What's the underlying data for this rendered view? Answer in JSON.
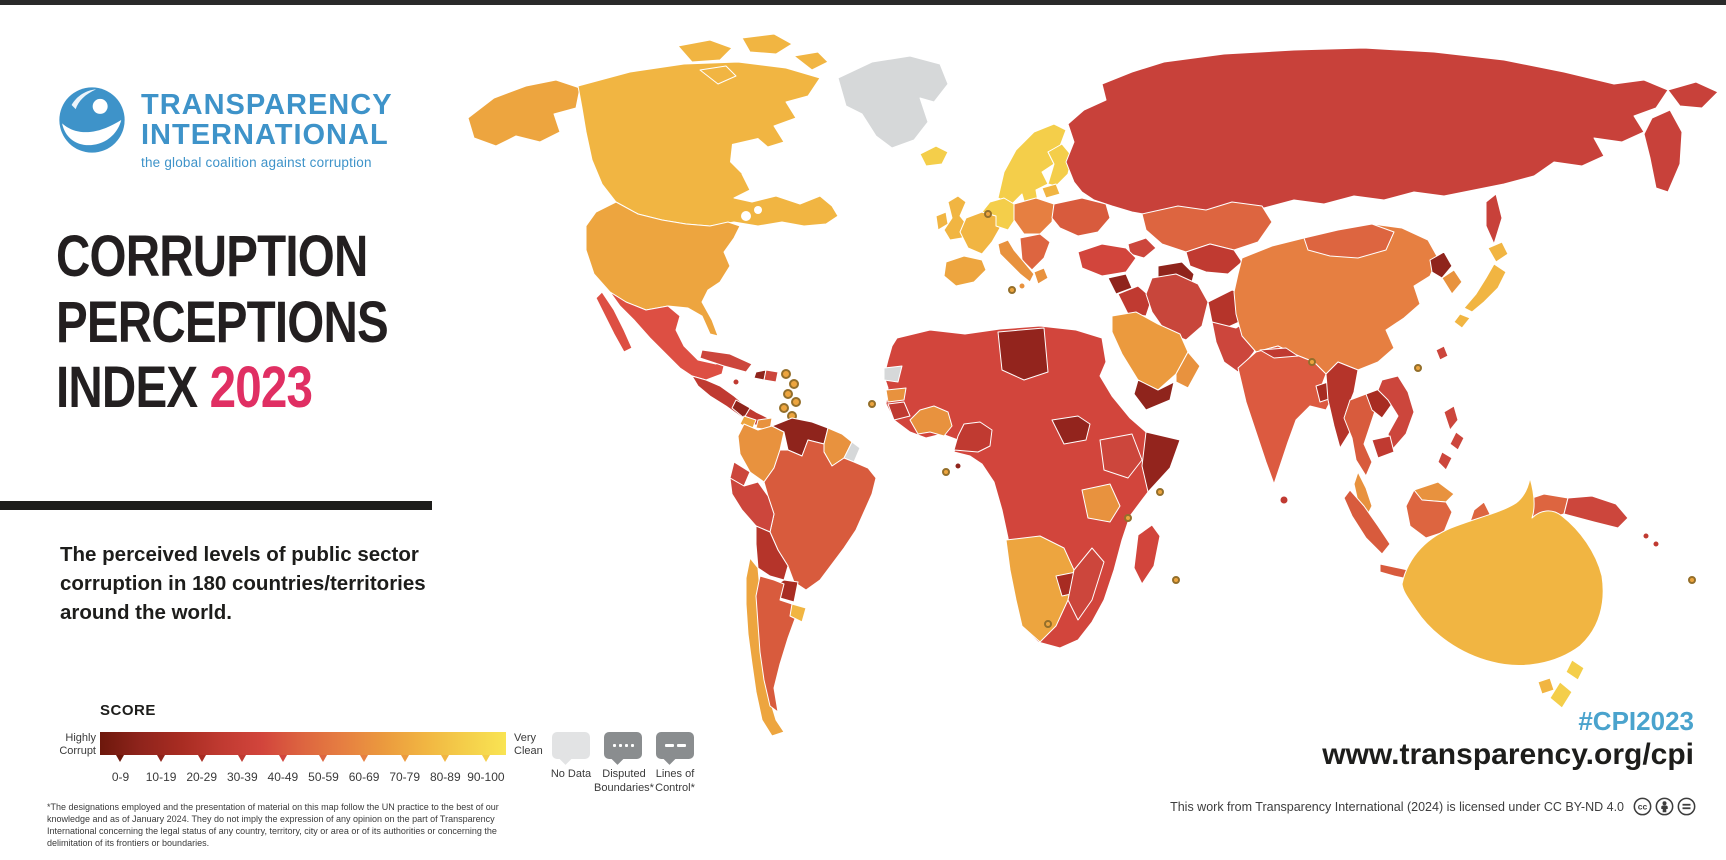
{
  "brand": {
    "name_line1": "TRANSPARENCY",
    "name_line2": "INTERNATIONAL",
    "tagline": "the global coalition against corruption",
    "blue": "#3e93c9"
  },
  "title": {
    "line1": "CORRUPTION",
    "line2": "PERCEPTIONS",
    "line3_prefix": "INDEX ",
    "year": "2023",
    "year_color": "#e02f63"
  },
  "description": "The perceived levels of public sector corruption in 180 countries/territories around the world.",
  "score_legend": {
    "heading": "SCORE",
    "left_label": [
      "Highly",
      "Corrupt"
    ],
    "right_label": [
      "Very",
      "Clean"
    ],
    "ranges": [
      "0-9",
      "10-19",
      "20-29",
      "30-39",
      "40-49",
      "50-59",
      "60-69",
      "70-79",
      "80-89",
      "90-100"
    ],
    "gradient": [
      "#6d180c",
      "#8f241c",
      "#a82c22",
      "#c03a31",
      "#d2453c",
      "#dd6540",
      "#e67f41",
      "#eb9a3e",
      "#f1b542",
      "#f4ce4a",
      "#f9e453"
    ]
  },
  "map_legend": {
    "no_data": {
      "label": "No Data",
      "color": "#e2e3e4"
    },
    "disputed": {
      "label_line1": "Disputed",
      "label_line2": "Boundaries*",
      "color": "#8a8d8f"
    },
    "lines": {
      "label_line1": "Lines of",
      "label_line2": "Control*",
      "color": "#8a8d8f"
    }
  },
  "footnote": "*The designations employed and the presentation of material on this map follow the UN practice to the best of our knowledge and as of January 2024. They do not imply the expression of any opinion on the part of Transparency International concerning the legal status of any country, territory, city or area or of its authorities or concerning the delimitation of its frontiers or boundaries.",
  "footer": {
    "hashtag": "#CPI2023",
    "hashtag_color": "#4aa3cd",
    "url": "www.transparency.org/cpi",
    "license_text": "This work from Transparency International (2024) is licensed under CC BY-ND 4.0"
  },
  "map": {
    "colors": {
      "greenland": "#d6d8d9",
      "alaska": "#eda53f",
      "canada": "#f1b542",
      "usa": "#eda53f",
      "mexico": "#dd4f43",
      "central_america": "#c03a31",
      "nicaragua": "#8f241c",
      "costa_rica": "#eda53f",
      "panama": "#e8923e",
      "cuba": "#cc463c",
      "haiti": "#8f241c",
      "dominican_republic": "#cc463c",
      "jamaica": "#c03a31",
      "colombia": "#e8923e",
      "venezuela": "#8f241c",
      "guyanas": "#e8923e",
      "french_guiana": "#d6d8d9",
      "ecuador": "#cc463c",
      "peru": "#cc463c",
      "brazil": "#d85b3d",
      "bolivia": "#b5342a",
      "paraguay": "#a82c22",
      "chile": "#eda53f",
      "argentina": "#d85b3d",
      "uruguay": "#f1b542",
      "iceland": "#f4ce4a",
      "scandinavia": "#f4ce4a",
      "finland": "#f4ce4a",
      "denmark": "#f9e453",
      "baltics": "#f1b542",
      "uk": "#f1b542",
      "ireland": "#f1b542",
      "france": "#f1b542",
      "germany": "#f4ce4a",
      "central_europe": "#e67f41",
      "balkans": "#dd6540",
      "greece": "#e8923e",
      "italy": "#e8923e",
      "iberia": "#eda53f",
      "ukraine": "#d85b3d",
      "russia": "#c8413a",
      "kazakhstan": "#dd6540",
      "central_asia": "#c03a31",
      "turkmenistan": "#8f241c",
      "caucasus": "#cc463c",
      "turkey": "#d2453c",
      "syria": "#8f241c",
      "iraq": "#c03a31",
      "iran": "#c8463b",
      "afghanistan": "#b5342a",
      "pakistan": "#cc463c",
      "saudi_arabia": "#eb9a3e",
      "yemen": "#8f241c",
      "oman": "#e8923e",
      "africa_base": "#d2453c",
      "libya": "#93241d",
      "western_sahara": "#d6d8d9",
      "senegal": "#e8923e",
      "guinea_region": "#c03a31",
      "west_africa": "#e8923e",
      "nigeria": "#c03a31",
      "south_sudan": "#93241d",
      "somalia": "#93241d",
      "ethiopia": "#cc463c",
      "equatorial_guinea": "#8f241c",
      "tanzania": "#e8923e",
      "southern_africa": "#eda53f",
      "zimbabwe": "#a82c22",
      "mozambique": "#cc463c",
      "madagascar": "#d2453c",
      "india": "#dc5a40",
      "nepal": "#c03a31",
      "bangladesh": "#a82c22",
      "sri_lanka": "#c03a31",
      "china": "#e67f41",
      "mongolia": "#dd6540",
      "north_korea": "#8f241c",
      "south_korea": "#e8923e",
      "japan": "#f1b542",
      "taiwan": "#cc463c",
      "sakhalin": "#c8413a",
      "myanmar": "#b5342a",
      "thailand": "#d85b3d",
      "laos": "#a82c22",
      "vietnam": "#cc463c",
      "cambodia": "#c03a31",
      "malaysia": "#e8923e",
      "sumatra": "#d85b3d",
      "java": "#d85b3d",
      "borneo_malaysia": "#e8923e",
      "borneo_indonesia": "#dd6540",
      "sulawesi": "#dd6540",
      "philippines": "#cc463c",
      "timor": "#c03a31",
      "west_new_guinea": "#dd6540",
      "papua_new_guinea": "#cc463c",
      "pacific_islands": "#c03a31",
      "australia": "#f1b542",
      "tasmania": "#f1b542",
      "new_zealand": "#f4ce4a",
      "ring_fill": "#eda53f",
      "ring_stroke": "#946f2b"
    }
  }
}
